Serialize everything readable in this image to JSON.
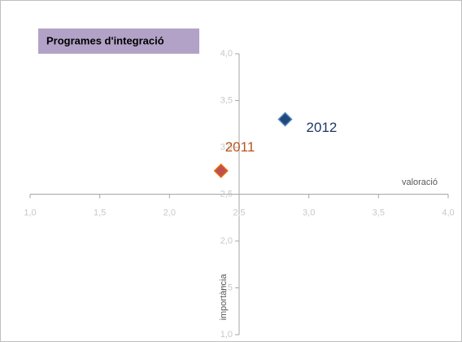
{
  "chart_data": {
    "type": "scatter",
    "title": "Programes d'integració",
    "x_label": "valoració",
    "y_label": "importància",
    "xlim": [
      1,
      4
    ],
    "ylim": [
      1,
      4
    ],
    "xticks": [
      {
        "value": 1,
        "label": "1,0"
      },
      {
        "value": 1.5,
        "label": "1,5"
      },
      {
        "value": 2,
        "label": "2,0"
      },
      {
        "value": 2.5,
        "label": "2,5"
      },
      {
        "value": 3,
        "label": "3,0"
      },
      {
        "value": 3.5,
        "label": "3,5"
      },
      {
        "value": 4,
        "label": "4,0"
      }
    ],
    "yticks": [
      {
        "value": 1,
        "label": "1,0"
      },
      {
        "value": 1.5,
        "label": "1,5"
      },
      {
        "value": 2,
        "label": "2,0"
      },
      {
        "value": 2.5,
        "label": "2,5"
      },
      {
        "value": 3,
        "label": "3,0"
      },
      {
        "value": 3.5,
        "label": "3,5"
      },
      {
        "value": 4,
        "label": "4,0"
      }
    ],
    "axis_cross": [
      2.5,
      2.5
    ],
    "series": [
      {
        "name": "2011",
        "color": "#c0504d",
        "label_color": "#b7541c",
        "x": [
          2.37
        ],
        "values": [
          2.75
        ]
      },
      {
        "name": "2012",
        "color": "#1f497d",
        "label_color": "#1f3864",
        "x": [
          2.83
        ],
        "values": [
          3.3
        ]
      }
    ]
  }
}
